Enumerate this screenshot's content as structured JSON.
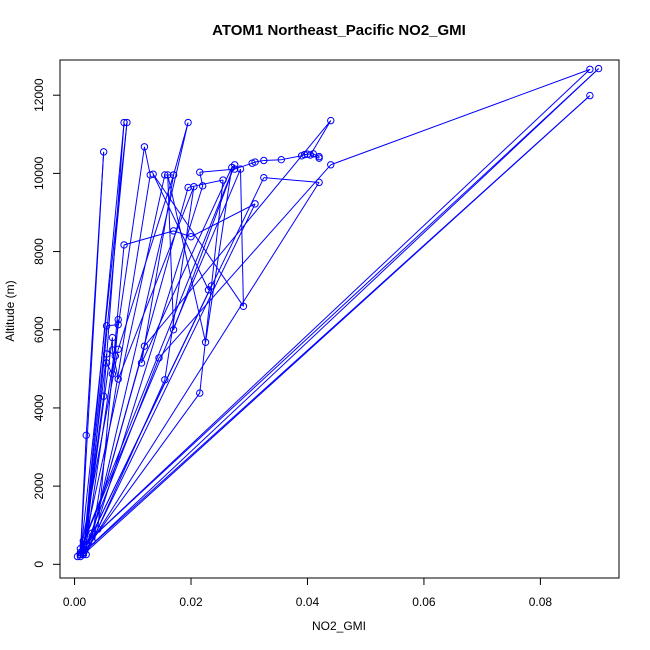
{
  "chart_data": {
    "type": "scatter",
    "title": "ATOM1 Northeast_Pacific NO2_GMI",
    "xlabel": "NO2_GMI",
    "ylabel": "Altitude (m)",
    "xlim": [
      -0.0025,
      0.0935
    ],
    "ylim": [
      -350,
      12900
    ],
    "x_ticks": [
      0,
      0.02,
      0.04,
      0.06,
      0.08
    ],
    "x_tick_labels": [
      "0.00",
      "0.02",
      "0.04",
      "0.06",
      "0.08"
    ],
    "y_ticks": [
      0,
      2000,
      4000,
      6000,
      8000,
      10000,
      12000
    ],
    "y_tick_labels": [
      "0",
      "2000",
      "4000",
      "6000",
      "8000",
      "10000",
      "12000"
    ],
    "grid": false,
    "legend": "none",
    "markers": "open circles connected by lines",
    "series_color": "#0000ff",
    "series": [
      {
        "points": [
          [
            0.001,
            250
          ],
          [
            0.002,
            3300
          ],
          [
            0.005,
            10550
          ],
          [
            0.001,
            200
          ],
          [
            0.009,
            11300
          ],
          [
            0.002,
            500
          ],
          [
            0.012,
            10680
          ],
          [
            0.013,
            9960
          ],
          [
            0.003,
            700
          ],
          [
            0.0195,
            11300
          ],
          [
            0.017,
            9960
          ],
          [
            0.0155,
            9960
          ],
          [
            0.0015,
            400
          ],
          [
            0.001,
            250
          ],
          [
            0.004,
            900
          ],
          [
            0.0085,
            8170
          ],
          [
            0.017,
            8530
          ],
          [
            0.02,
            8380
          ],
          [
            0.031,
            9220
          ],
          [
            0.003,
            600
          ],
          [
            0.022,
            9680
          ],
          [
            0.0215,
            10030
          ],
          [
            0.0275,
            10110
          ],
          [
            0.0305,
            10260
          ],
          [
            0.031,
            10290
          ],
          [
            0.0325,
            10330
          ],
          [
            0.0355,
            10350
          ],
          [
            0.039,
            10450
          ],
          [
            0.0395,
            10480
          ],
          [
            0.04,
            10490
          ],
          [
            0.041,
            10500
          ],
          [
            0.042,
            10430
          ],
          [
            0.042,
            10390
          ],
          [
            0.0405,
            10470
          ],
          [
            0.044,
            11350
          ],
          [
            0.012,
            5580
          ],
          [
            0.003,
            800
          ],
          [
            0.0015,
            300
          ],
          [
            0.0085,
            11300
          ],
          [
            0.005,
            4300
          ],
          [
            0.0015,
            350
          ],
          [
            0.0055,
            5380
          ],
          [
            0.0055,
            5150
          ],
          [
            0.0065,
            4870
          ],
          [
            0.007,
            5330
          ],
          [
            0.0075,
            6260
          ],
          [
            0.0075,
            6130
          ],
          [
            0.0055,
            6100
          ],
          [
            0.0015,
            250
          ],
          [
            0.0065,
            5800
          ],
          [
            0.0065,
            5480
          ],
          [
            0.0075,
            4740
          ],
          [
            0.0205,
            9660
          ],
          [
            0.0155,
            4720
          ],
          [
            0.002,
            250
          ],
          [
            0.0195,
            9640
          ],
          [
            0.0255,
            9830
          ],
          [
            0.0215,
            4380
          ],
          [
            0.0015,
            300
          ],
          [
            0.0145,
            5280
          ],
          [
            0.044,
            10220
          ],
          [
            0.0885,
            12660
          ],
          [
            0.001,
            400
          ],
          [
            0.09,
            12680
          ],
          [
            0.0015,
            300
          ],
          [
            0.0885,
            11990
          ],
          [
            0.0015,
            250
          ],
          [
            0.042,
            9770
          ],
          [
            0.0325,
            9890
          ],
          [
            0.0015,
            300
          ],
          [
            0.0235,
            7120
          ],
          [
            0.023,
            7020
          ],
          [
            0.0135,
            9980
          ],
          [
            0.029,
            6600
          ],
          [
            0.0285,
            10110
          ],
          [
            0.0005,
            200
          ],
          [
            0.0275,
            10220
          ],
          [
            0.017,
            6000
          ],
          [
            0.016,
            9960
          ],
          [
            0.0225,
            5680
          ],
          [
            0.027,
            10150
          ],
          [
            0.0115,
            5150
          ],
          [
            0.017,
            9960
          ],
          [
            0.0075,
            5500
          ],
          [
            0.001,
            300
          ],
          [
            0.0015,
            450
          ],
          [
            0.001,
            300
          ],
          [
            0.0015,
            500
          ],
          [
            0.0015,
            600
          ]
        ]
      }
    ]
  }
}
